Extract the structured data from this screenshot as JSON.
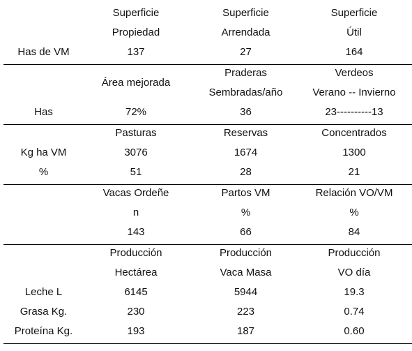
{
  "sections": [
    {
      "lines": [
        [
          "",
          "Superficie",
          "Superficie",
          "Superficie"
        ],
        [
          "",
          "Propiedad",
          "Arrendada",
          "Útil"
        ],
        [
          "Has de VM",
          "137",
          "27",
          "164"
        ]
      ]
    },
    {
      "lines": [
        [
          "",
          "",
          "Praderas",
          "Verdeos"
        ],
        [
          "",
          "Área mejorada",
          "",
          ""
        ],
        [
          "",
          "",
          "Sembradas/año",
          "Verano -- Invierno"
        ],
        [
          "Has",
          "72%",
          "36",
          "23----------13"
        ]
      ]
    },
    {
      "lines": [
        [
          "",
          "Pasturas",
          "Reservas",
          "Concentrados"
        ],
        [
          "Kg ha VM",
          "3076",
          "1674",
          "1300"
        ],
        [
          "%",
          "51",
          "28",
          "21"
        ]
      ]
    },
    {
      "lines": [
        [
          "",
          "Vacas Ordeñe",
          "Partos VM",
          "Relación VO/VM"
        ],
        [
          "",
          "n",
          "%",
          "%"
        ],
        [
          "",
          "143",
          "66",
          "84"
        ]
      ]
    },
    {
      "lines": [
        [
          "",
          "Producción",
          "Producción",
          "Producción"
        ],
        [
          "",
          "Hectárea",
          "Vaca Masa",
          "VO día"
        ],
        [
          "Leche L",
          "6145",
          "5944",
          "19.3"
        ],
        [
          "Grasa Kg.",
          "230",
          "223",
          "0.74"
        ],
        [
          "Proteína Kg.",
          "193",
          "187",
          "0.60"
        ]
      ]
    }
  ]
}
